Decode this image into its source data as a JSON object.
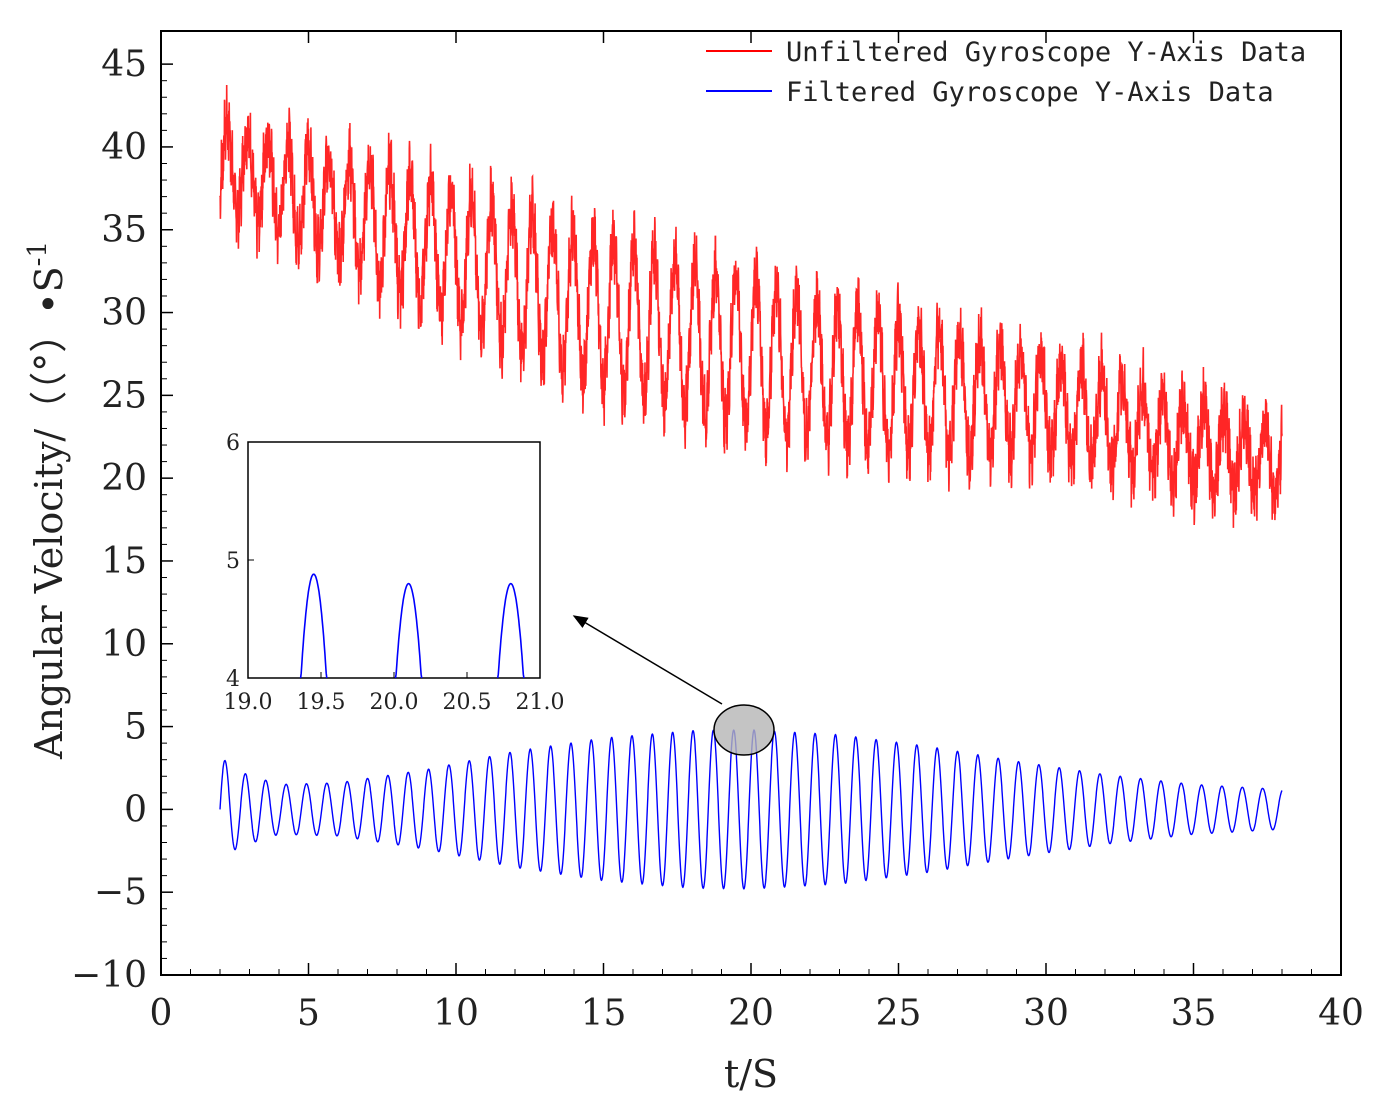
{
  "chart_data": {
    "type": "line",
    "title": "",
    "xlabel": "t/S",
    "ylabel": "Angular Velocity/（（°）•S",
    "ylabel_superscript": "-1",
    "xlim": [
      0,
      40
    ],
    "ylim": [
      -10,
      47
    ],
    "x_ticks": [
      "0",
      "5",
      "10",
      "15",
      "20",
      "25",
      "30",
      "35",
      "40"
    ],
    "y_ticks": [
      "-10",
      "-5",
      "0",
      "5",
      "10",
      "15",
      "20",
      "25",
      "30",
      "35",
      "40",
      "45"
    ],
    "legend_position": "top-right",
    "series": [
      {
        "name": "Unfiltered Gyroscope Y-Axis Data",
        "color": "#ff0000",
        "x_range": [
          2,
          38
        ],
        "oscillation_frequency_hz": 1.45,
        "center_points": [
          [
            2,
            39
          ],
          [
            5,
            37
          ],
          [
            10,
            33.5
          ],
          [
            15,
            30
          ],
          [
            20,
            27.5
          ],
          [
            25,
            25.5
          ],
          [
            30,
            24.5
          ],
          [
            35,
            22
          ],
          [
            38,
            21
          ]
        ],
        "amplitude_points": [
          [
            2,
            2.5
          ],
          [
            5,
            3
          ],
          [
            10,
            4
          ],
          [
            15,
            4.5
          ],
          [
            20,
            4.5
          ],
          [
            25,
            4
          ],
          [
            30,
            3
          ],
          [
            35,
            2.5
          ],
          [
            38,
            2
          ]
        ]
      },
      {
        "name": "Filtered Gyroscope Y-Axis Data",
        "color": "#0000ff",
        "x_range": [
          2,
          38
        ],
        "oscillation_frequency_hz": 1.45,
        "center": 0,
        "amplitude_points": [
          [
            2,
            3.2
          ],
          [
            2.6,
            2.3
          ],
          [
            4,
            1.5
          ],
          [
            6,
            1.6
          ],
          [
            9,
            2.4
          ],
          [
            12,
            3.5
          ],
          [
            15,
            4.3
          ],
          [
            18,
            4.75
          ],
          [
            20,
            4.8
          ],
          [
            23,
            4.5
          ],
          [
            26,
            3.8
          ],
          [
            29,
            2.9
          ],
          [
            32,
            2.1
          ],
          [
            35,
            1.5
          ],
          [
            38,
            1.2
          ]
        ]
      }
    ],
    "inset": {
      "xlim": [
        19.0,
        21.0
      ],
      "ylim": [
        4,
        6
      ],
      "x_ticks": [
        "19.0",
        "19.5",
        "20.0",
        "20.5",
        "21.0"
      ],
      "y_ticks": [
        "4",
        "5",
        "6"
      ],
      "peaks": [
        {
          "x": 19.45,
          "y": 4.88
        },
        {
          "x": 20.1,
          "y": 4.8
        },
        {
          "x": 20.8,
          "y": 4.8
        }
      ]
    },
    "zoom_region": {
      "x": 20,
      "y": 4.8
    }
  }
}
